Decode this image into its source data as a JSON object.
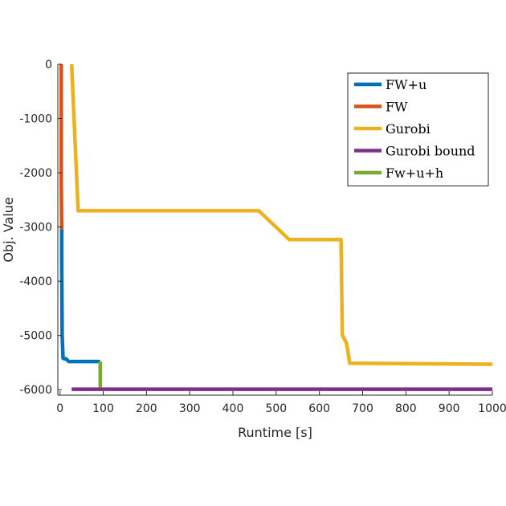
{
  "chart_data": {
    "type": "line",
    "title": "",
    "xlabel": "Runtime [s]",
    "ylabel": "Obj. Value",
    "xlim": [
      -5,
      1000
    ],
    "ylim": [
      -6100,
      0
    ],
    "x_ticks": [
      0,
      100,
      200,
      300,
      400,
      500,
      600,
      700,
      800,
      900,
      1000
    ],
    "y_ticks": [
      0,
      -1000,
      -2000,
      -3000,
      -4000,
      -5000,
      -6000
    ],
    "grid": false,
    "legend_position": "top-right",
    "series": [
      {
        "name": "FW+u",
        "color": "#0072BD",
        "x": [
          4,
          4,
          5,
          7,
          10,
          14,
          20,
          90,
          93
        ],
        "y": [
          -3050,
          -3600,
          -5000,
          -5420,
          -5430,
          -5430,
          -5480,
          -5480,
          -5480
        ]
      },
      {
        "name": "FW",
        "color": "#D95319",
        "x": [
          3,
          3,
          4
        ],
        "y": [
          0,
          -2200,
          -3050
        ]
      },
      {
        "name": "Gurobi",
        "color": "#EDB120",
        "x": [
          27,
          42,
          460,
          530,
          650,
          653,
          663,
          670,
          1000
        ],
        "y": [
          0,
          -2700,
          -2700,
          -3230,
          -3230,
          -4990,
          -5150,
          -5510,
          -5530
        ]
      },
      {
        "name": "Gurobi bound",
        "color": "#7E2F8E",
        "x": [
          27,
          1000
        ],
        "y": [
          -5990,
          -5990
        ]
      },
      {
        "name": "Fw+u+h",
        "color": "#77AC30",
        "x": [
          93,
          93
        ],
        "y": [
          -5480,
          -5960
        ]
      }
    ]
  }
}
